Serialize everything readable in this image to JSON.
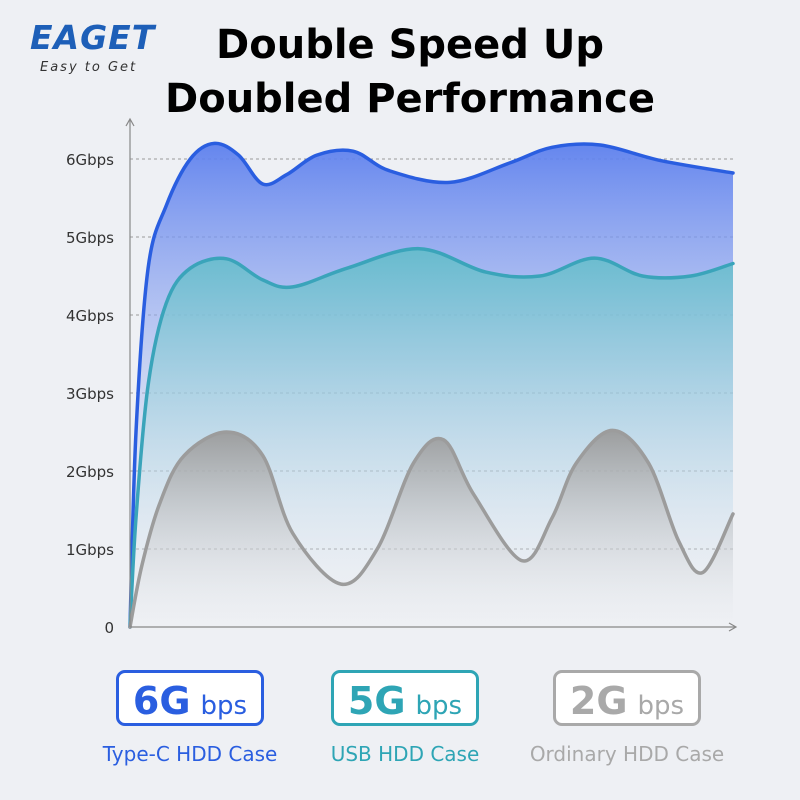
{
  "brand": {
    "name": "EAGET",
    "tagline": "Easy to Get"
  },
  "headline": {
    "line1": "Double Speed Up",
    "line2": "Doubled Performance"
  },
  "chart_data": {
    "type": "area",
    "title": "",
    "xlabel": "",
    "ylabel": "",
    "ylim": [
      0,
      6.5
    ],
    "yticks": [
      {
        "value": 0,
        "label": "0"
      },
      {
        "value": 1,
        "label": "1Gbps"
      },
      {
        "value": 2,
        "label": "2Gbps"
      },
      {
        "value": 3,
        "label": "3Gbps"
      },
      {
        "value": 4,
        "label": "4Gbps"
      },
      {
        "value": 5,
        "label": "5Gbps"
      },
      {
        "value": 6,
        "label": "6Gbps"
      }
    ],
    "xlim": [
      0,
      100
    ],
    "grid": true,
    "series": [
      {
        "name": "Type-C HDD Case",
        "color": "#2a5ee0",
        "fill": "#6f8ff0",
        "values": [
          [
            0,
            0
          ],
          [
            1,
            2.5
          ],
          [
            3,
            4.6
          ],
          [
            6,
            5.4
          ],
          [
            10,
            6.0
          ],
          [
            14,
            6.2
          ],
          [
            18,
            6.05
          ],
          [
            22,
            5.68
          ],
          [
            26,
            5.8
          ],
          [
            31,
            6.05
          ],
          [
            37,
            6.1
          ],
          [
            43,
            5.85
          ],
          [
            53,
            5.7
          ],
          [
            63,
            5.95
          ],
          [
            70,
            6.15
          ],
          [
            78,
            6.18
          ],
          [
            88,
            5.98
          ],
          [
            100,
            5.82
          ]
        ]
      },
      {
        "name": "USB HDD Case",
        "color": "#3aa4ba",
        "fill": "#73c3d1",
        "values": [
          [
            0,
            0
          ],
          [
            1,
            1.4
          ],
          [
            3,
            3.1
          ],
          [
            6,
            4.15
          ],
          [
            10,
            4.6
          ],
          [
            16,
            4.72
          ],
          [
            22,
            4.45
          ],
          [
            27,
            4.36
          ],
          [
            36,
            4.6
          ],
          [
            48,
            4.85
          ],
          [
            59,
            4.55
          ],
          [
            68,
            4.5
          ],
          [
            77,
            4.73
          ],
          [
            85,
            4.5
          ],
          [
            93,
            4.5
          ],
          [
            100,
            4.66
          ]
        ]
      },
      {
        "name": "Ordinary HDD Case",
        "color": "#9c9c9c",
        "fill": "#a8a8a8",
        "values": [
          [
            0,
            0
          ],
          [
            2,
            0.8
          ],
          [
            5,
            1.6
          ],
          [
            9,
            2.2
          ],
          [
            16,
            2.5
          ],
          [
            22,
            2.2
          ],
          [
            27,
            1.2
          ],
          [
            35,
            0.55
          ],
          [
            41,
            1.0
          ],
          [
            47,
            2.1
          ],
          [
            52,
            2.4
          ],
          [
            57,
            1.7
          ],
          [
            65,
            0.85
          ],
          [
            70,
            1.4
          ],
          [
            74,
            2.1
          ],
          [
            80,
            2.52
          ],
          [
            86,
            2.1
          ],
          [
            91,
            1.1
          ],
          [
            95,
            0.7
          ],
          [
            100,
            1.45
          ]
        ]
      }
    ]
  },
  "badges": [
    {
      "number": "6G",
      "unit": "bps",
      "label": "Type-C HDD Case",
      "color": "#2a5ee0"
    },
    {
      "number": "5G",
      "unit": "bps",
      "label": "USB HDD Case",
      "color": "#2ea5b5"
    },
    {
      "number": "2G",
      "unit": "bps",
      "label": "Ordinary HDD Case",
      "color": "#a9a9a9"
    }
  ]
}
